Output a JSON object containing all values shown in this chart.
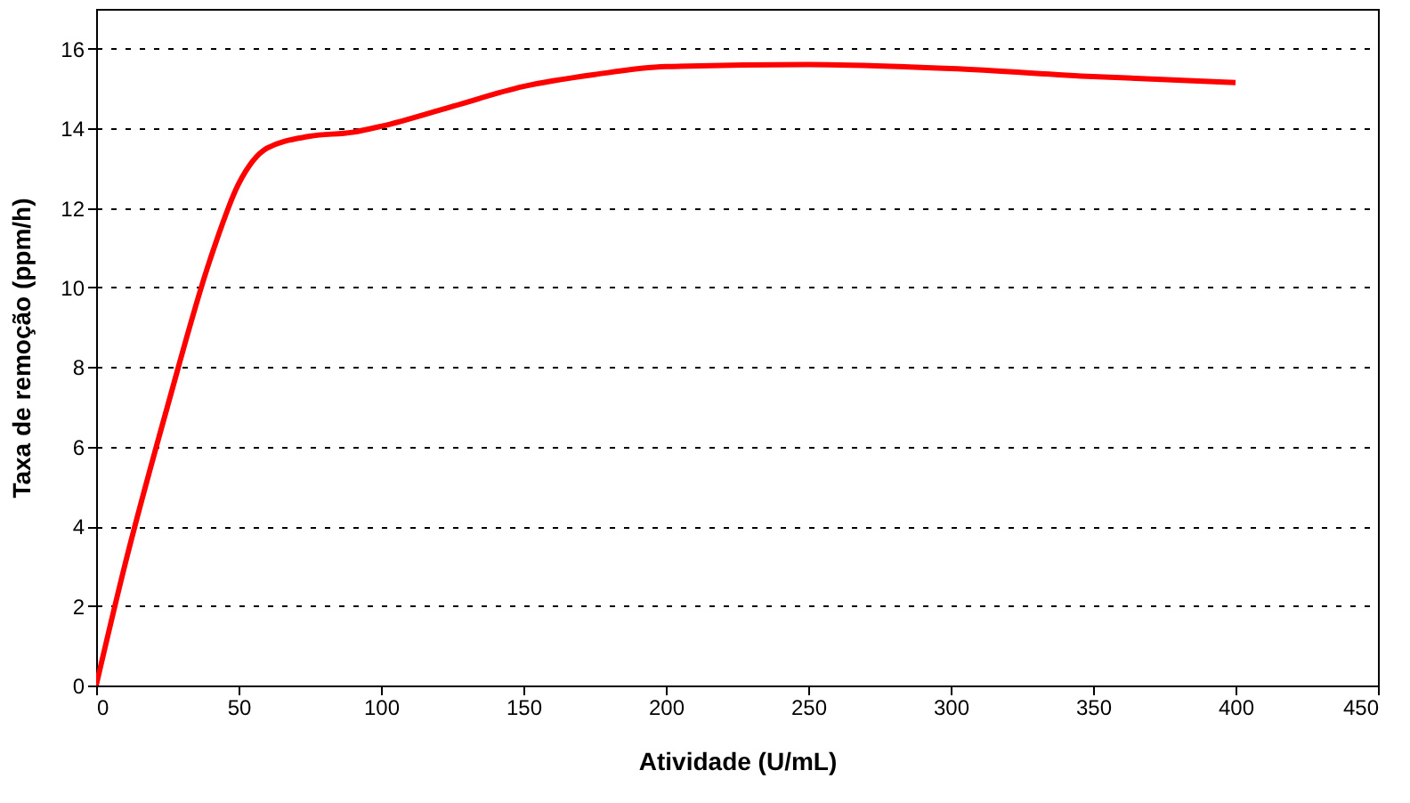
{
  "chart_data": {
    "type": "line",
    "xlabel": "Atividade (U/mL)",
    "ylabel": "Taxa de remoção (ppm/h)",
    "x": [
      0,
      10,
      25,
      40,
      50,
      60,
      75,
      90,
      100,
      125,
      150,
      175,
      200,
      250,
      300,
      350,
      400
    ],
    "series": [
      {
        "color": "#ff0000",
        "values": [
          0,
          3.0,
          7.0,
          10.7,
          12.6,
          13.5,
          13.8,
          13.9,
          14.05,
          14.55,
          15.05,
          15.35,
          15.55,
          15.6,
          15.5,
          15.3,
          15.15
        ]
      }
    ],
    "xlim": [
      0,
      450
    ],
    "xticks": [
      0,
      50,
      100,
      150,
      200,
      250,
      300,
      350,
      400,
      450
    ],
    "ylim": [
      0,
      17
    ],
    "yticks": [
      0,
      2,
      4,
      6,
      8,
      10,
      12,
      14,
      16
    ],
    "grid": "y",
    "marker": "none",
    "line_style": "solid"
  }
}
